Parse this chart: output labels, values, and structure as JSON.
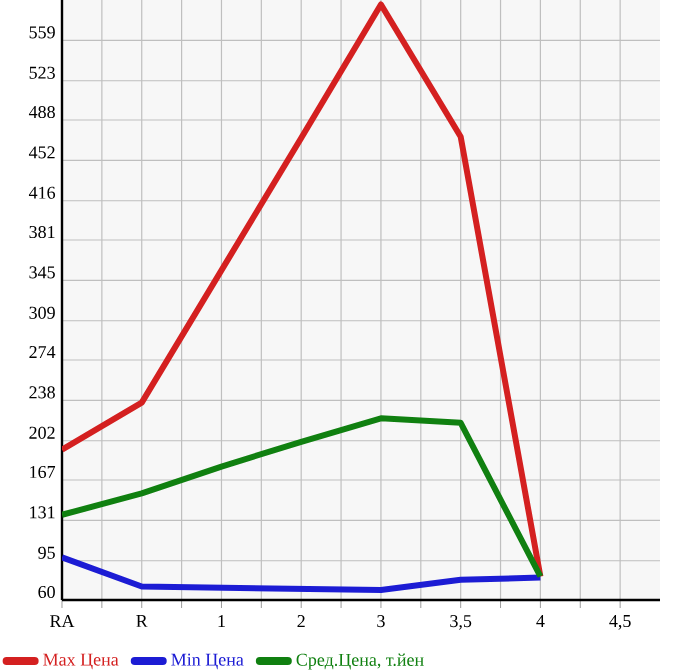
{
  "chart_data": {
    "type": "line",
    "categories": [
      "RA",
      "R",
      "1",
      "2",
      "3",
      "3,5",
      "4",
      "4,5"
    ],
    "series": [
      {
        "name": "Max Цена",
        "color": "#d42020",
        "values": [
          194,
          236,
          354,
          472,
          591,
          473,
          81,
          null
        ]
      },
      {
        "name": "Min Цена",
        "color": "#1c1cd4",
        "values": [
          98,
          72,
          71,
          70,
          69,
          78,
          80,
          null
        ]
      },
      {
        "name": "Сред.Цена, т.йен",
        "color": "#108010",
        "values": [
          136,
          155,
          179,
          201,
          222,
          218,
          81,
          null
        ]
      }
    ],
    "ylim": [
      60,
      595
    ],
    "yticks": [
      60,
      95,
      131,
      167,
      202,
      238,
      274,
      309,
      345,
      381,
      416,
      452,
      488,
      523,
      559
    ],
    "grid": true,
    "legend": "bottom",
    "line_style": "solid",
    "marker": "none"
  }
}
